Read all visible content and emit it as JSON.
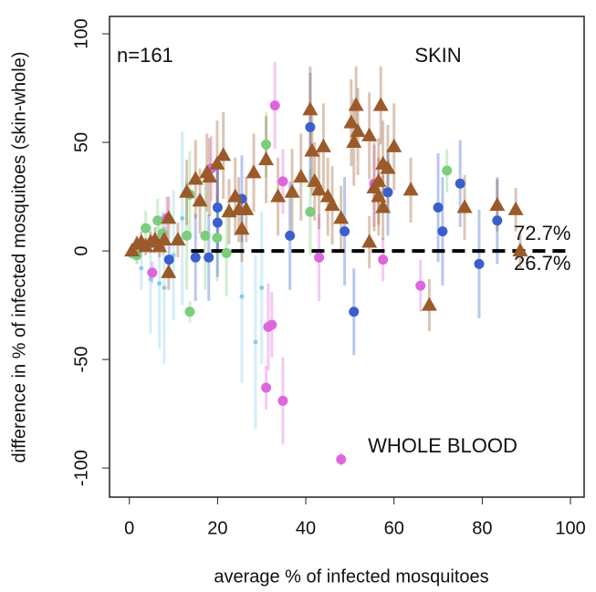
{
  "chart_data": {
    "type": "scatter",
    "x_label": "average % of infected mosquitoes",
    "y_label": "difference in % of infected mosquitoes (skin-whole)",
    "annotations": {
      "n": "n=161",
      "skin": "SKIN",
      "blood": "WHOLE BLOOD",
      "above": "72.7%",
      "below": "26.7%"
    },
    "xlim": [
      -4.5,
      103.1
    ],
    "ylim": [
      -113.4,
      108
    ],
    "xticks": [
      0,
      20,
      40,
      60,
      80,
      100
    ],
    "yticks": [
      -100,
      -50,
      0,
      50,
      100
    ],
    "reference_line": {
      "y": 0,
      "x": [
        14,
        100
      ]
    },
    "series": [
      {
        "color": "#87ceeb",
        "marker": "dot",
        "x": [
          1.7,
          2.7,
          4.8,
          6.8,
          7.9,
          10,
          12,
          25.5,
          28.6,
          30
        ],
        "values": [
          -1,
          -8,
          -13,
          -15,
          -17,
          -2,
          15,
          -21,
          -42,
          -17
        ],
        "errors": [
          5,
          10,
          25,
          30,
          35,
          30,
          40,
          40,
          40,
          35
        ]
      },
      {
        "color": "#7ccd7c",
        "marker": "circle",
        "x": [
          0.6,
          1.7,
          3.7,
          6.4,
          7.5,
          13,
          13.7,
          17.2,
          19.9,
          22,
          31,
          41,
          72,
          13.7
        ],
        "values": [
          -1,
          -2,
          10.5,
          14,
          8,
          7,
          26,
          7,
          6,
          -1,
          49,
          18,
          37,
          -28
        ],
        "errors": [
          3,
          4,
          8,
          10,
          10,
          25,
          20,
          25,
          20,
          20,
          15,
          20,
          10,
          5
        ]
      },
      {
        "color": "#dd66dd",
        "marker": "circle",
        "x": [
          5.2,
          8.5,
          18.6,
          33,
          34.8,
          32.3,
          31.5,
          31,
          34.8,
          43,
          48,
          57.5,
          66,
          55.5
        ],
        "values": [
          -10,
          15,
          38,
          67,
          32,
          -34,
          -35,
          -63,
          -69,
          -3,
          -96,
          -4,
          -16,
          31
        ],
        "errors": [
          5,
          10,
          15,
          20,
          15,
          15,
          20,
          10,
          20,
          20,
          3,
          10,
          12,
          20
        ]
      },
      {
        "color": "#3a5fcd",
        "marker": "circle",
        "x": [
          9,
          15,
          18,
          20,
          20,
          25.5,
          36.4,
          41,
          48.8,
          50.9,
          58.6,
          70,
          71,
          75,
          79.3,
          83.4
        ],
        "values": [
          -4,
          -3,
          -3,
          13,
          20,
          24,
          7,
          57,
          9,
          -28,
          27,
          20,
          9,
          31,
          -6,
          14
        ],
        "errors": [
          8,
          20,
          20,
          25,
          20,
          20,
          25,
          25,
          25,
          20,
          20,
          25,
          25,
          20,
          25,
          20
        ]
      },
      {
        "color": "#9b5a2a",
        "marker": "triangle",
        "x": [
          0.6,
          1.7,
          2.7,
          3.7,
          4.8,
          5.8,
          6.8,
          7.9,
          8.9,
          8.9,
          11,
          13,
          15,
          16,
          17.6,
          18.2,
          19.9,
          21.3,
          22.6,
          24,
          24.8,
          25.5,
          26.5,
          28.2,
          31,
          33.7,
          36.9,
          38.9,
          41,
          41.4,
          42,
          43,
          44,
          45,
          46,
          48,
          50.3,
          50.9,
          51.4,
          51.8,
          54.4,
          54.4,
          55.5,
          56.5,
          56.5,
          57,
          57.5,
          58.6,
          60,
          57.5,
          63.8,
          68,
          76,
          83.4,
          87.6,
          88.6
        ],
        "values": [
          0,
          3,
          4,
          2,
          4,
          5,
          2,
          5,
          15,
          -10,
          5,
          27,
          33,
          23,
          36,
          34,
          40,
          44,
          18,
          25,
          19,
          10,
          19,
          36,
          42,
          25,
          27,
          34,
          65,
          46,
          32,
          28,
          48,
          25,
          21,
          15,
          59,
          50,
          67,
          55,
          53,
          4,
          29,
          32,
          25,
          67,
          40,
          38,
          48,
          20,
          28,
          -25,
          20,
          21,
          19,
          0
        ],
        "errors": [
          3,
          4,
          5,
          4,
          5,
          6,
          5,
          6,
          10,
          8,
          8,
          15,
          18,
          15,
          18,
          18,
          20,
          20,
          15,
          18,
          15,
          15,
          15,
          18,
          20,
          18,
          20,
          20,
          20,
          20,
          18,
          18,
          20,
          18,
          18,
          15,
          20,
          20,
          18,
          20,
          20,
          12,
          20,
          20,
          18,
          18,
          20,
          20,
          20,
          15,
          15,
          12,
          15,
          12,
          10,
          8
        ]
      }
    ]
  }
}
